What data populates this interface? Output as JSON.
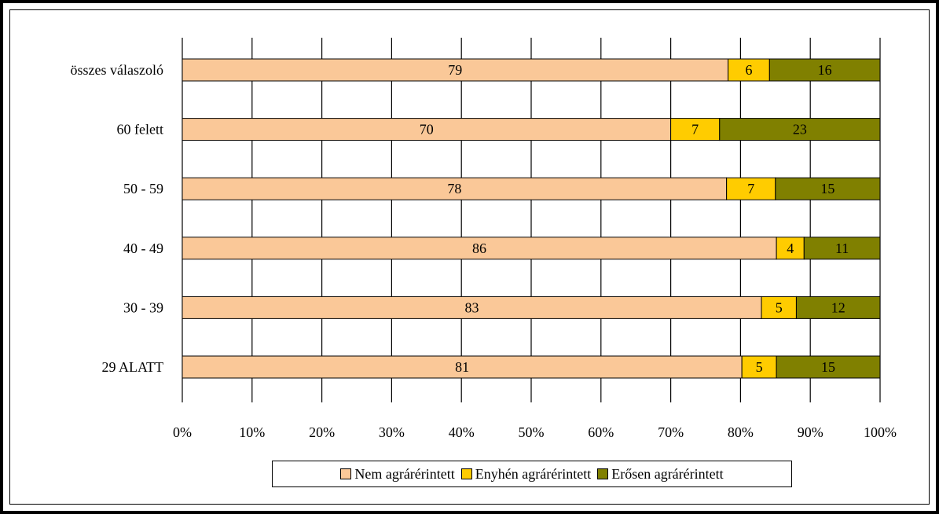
{
  "chart_data": {
    "type": "bar",
    "orientation": "horizontal",
    "stacked": true,
    "categories": [
      "összes válaszoló",
      "60 felett",
      "50 - 59",
      "40 - 49",
      "30 - 39",
      "29 ALATT"
    ],
    "series": [
      {
        "name": "Nem agrárérintett",
        "values": [
          79,
          70,
          78,
          86,
          83,
          81
        ],
        "labels": [
          "79",
          "70",
          "78",
          "86",
          "83",
          "81"
        ],
        "color": "#fac898"
      },
      {
        "name": "Enyhén agrárérintett",
        "values": [
          6,
          7,
          7,
          4,
          5,
          5
        ],
        "labels": [
          "6",
          "7",
          "7",
          "4",
          "5",
          "5"
        ],
        "color": "#ffcc00"
      },
      {
        "name": "Erősen agrárérintett",
        "values": [
          16,
          23,
          15,
          11,
          12,
          15
        ],
        "labels": [
          "16",
          "23",
          "15",
          "11",
          "12",
          "15"
        ],
        "color": "#808000"
      }
    ],
    "xticks": [
      "0%",
      "10%",
      "20%",
      "30%",
      "40%",
      "50%",
      "60%",
      "70%",
      "80%",
      "90%",
      "100%"
    ],
    "xlim": [
      0,
      100
    ],
    "grid": true,
    "legend_position": "bottom",
    "title": "",
    "xlabel": "",
    "ylabel": ""
  }
}
